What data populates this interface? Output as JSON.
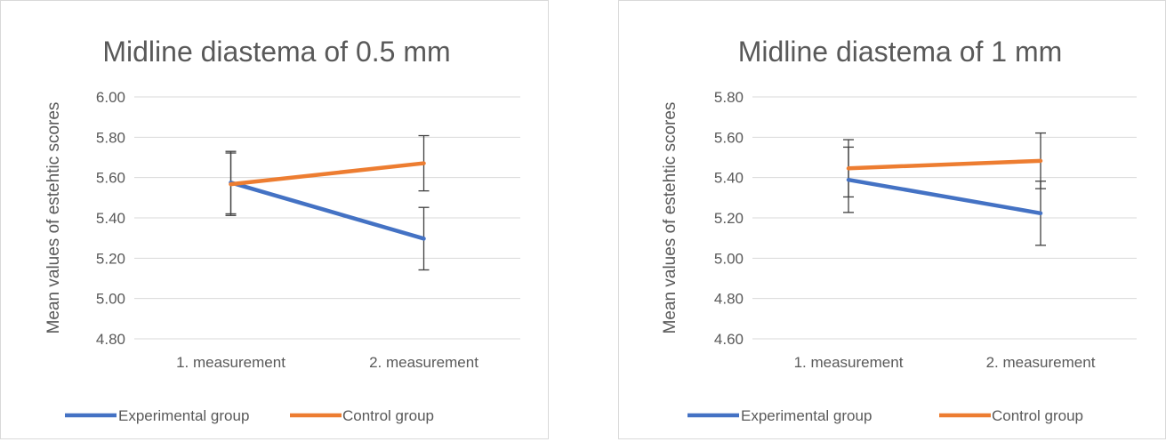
{
  "chart_data": [
    {
      "type": "line",
      "title": "Midline diastema of  0.5 mm",
      "ylabel": "Mean values of estehtic scores",
      "xlabel": "",
      "categories": [
        "1. measurement",
        "2. measurement"
      ],
      "ylim": [
        4.8,
        6.0
      ],
      "yticks": [
        "4.80",
        "5.00",
        "5.20",
        "5.40",
        "5.60",
        "5.80",
        "6.00"
      ],
      "grid": true,
      "legend_position": "bottom",
      "series": [
        {
          "name": "Experimental group",
          "color": "#4472c4",
          "values": [
            5.575,
            5.297
          ],
          "error": [
            0.155,
            0.155
          ]
        },
        {
          "name": "Control group",
          "color": "#ed7d31",
          "values": [
            5.567,
            5.671
          ],
          "error": [
            0.155,
            0.137
          ]
        }
      ]
    },
    {
      "type": "line",
      "title": "Midline diastema of 1 mm",
      "ylabel": "Mean values of estehtic scores",
      "xlabel": "",
      "categories": [
        "1. measurement",
        "2. measurement"
      ],
      "ylim": [
        4.6,
        5.8
      ],
      "yticks": [
        "4.60",
        "4.80",
        "5.00",
        "5.20",
        "5.40",
        "5.60",
        "5.80"
      ],
      "grid": true,
      "legend_position": "bottom",
      "series": [
        {
          "name": "Experimental group",
          "color": "#4472c4",
          "values": [
            5.389,
            5.223
          ],
          "error": [
            0.162,
            0.159
          ]
        },
        {
          "name": "Control group",
          "color": "#ed7d31",
          "values": [
            5.446,
            5.483
          ],
          "error": [
            0.142,
            0.138
          ]
        }
      ]
    }
  ]
}
